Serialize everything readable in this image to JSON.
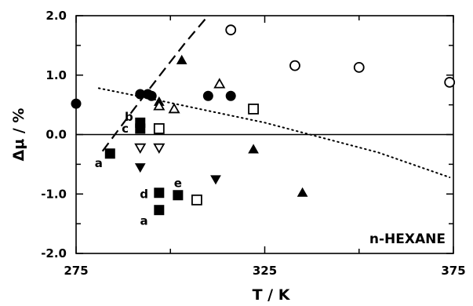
{
  "chart_data": {
    "type": "scatter",
    "title": "",
    "xlabel": "T / K",
    "ylabel": "Δμ / %",
    "xlim": [
      275,
      375
    ],
    "ylim": [
      -2.0,
      2.0
    ],
    "x_ticks": [
      "275",
      "325",
      "375"
    ],
    "y_ticks": [
      "2.0",
      "1.0",
      "0.0",
      "-1.0",
      "-2.0"
    ],
    "inset_label": "n-HEXANE",
    "reference_line_y": 0.0,
    "series": [
      {
        "marker": "filled-circle",
        "points": [
          [
            275,
            0.52
          ],
          [
            292,
            0.68
          ],
          [
            294,
            0.68
          ],
          [
            295,
            0.65
          ],
          [
            310,
            0.65
          ],
          [
            316,
            0.65
          ]
        ]
      },
      {
        "marker": "open-circle",
        "points": [
          [
            316,
            1.76
          ],
          [
            333,
            1.16
          ],
          [
            350,
            1.13
          ],
          [
            374,
            0.88
          ]
        ]
      },
      {
        "marker": "filled-triangle-up",
        "points": [
          [
            303,
            1.25
          ],
          [
            297,
            0.55
          ],
          [
            322,
            -0.25
          ],
          [
            335,
            -0.98
          ]
        ]
      },
      {
        "marker": "open-triangle-up",
        "points": [
          [
            313,
            0.85
          ],
          [
            297,
            0.48
          ],
          [
            301,
            0.43
          ]
        ]
      },
      {
        "marker": "filled-triangle-down",
        "points": [
          [
            292,
            -0.55
          ],
          [
            312,
            -0.75
          ]
        ]
      },
      {
        "marker": "open-triangle-down",
        "points": [
          [
            292,
            -0.22
          ],
          [
            297,
            -0.22
          ]
        ]
      },
      {
        "marker": "filled-square",
        "points": [
          [
            284,
            -0.32
          ],
          [
            292,
            0.2
          ],
          [
            292,
            0.1
          ],
          [
            297,
            -0.98
          ],
          [
            302,
            -1.02
          ],
          [
            297,
            -1.27
          ]
        ]
      },
      {
        "marker": "open-square",
        "points": [
          [
            297,
            0.1
          ],
          [
            322,
            0.43
          ],
          [
            307,
            -1.1
          ]
        ]
      }
    ],
    "curves": [
      {
        "style": "dashed",
        "points": [
          [
            282,
            -0.28
          ],
          [
            290,
            0.4
          ],
          [
            297,
            0.98
          ],
          [
            304,
            1.55
          ],
          [
            310,
            2.0
          ]
        ]
      },
      {
        "style": "dotted",
        "points": [
          [
            281,
            0.78
          ],
          [
            295,
            0.6
          ],
          [
            310,
            0.4
          ],
          [
            325,
            0.2
          ],
          [
            340,
            -0.05
          ],
          [
            355,
            -0.3
          ],
          [
            374,
            -0.72
          ]
        ]
      }
    ],
    "annotations": [
      {
        "text": "a",
        "x": 281,
        "y": -0.48
      },
      {
        "text": "b",
        "x": 289,
        "y": 0.3
      },
      {
        "text": "c",
        "x": 288,
        "y": 0.1
      },
      {
        "text": "d",
        "x": 293,
        "y": -1.0
      },
      {
        "text": "e",
        "x": 302,
        "y": -0.82
      },
      {
        "text": "a",
        "x": 293,
        "y": -1.45
      }
    ]
  }
}
